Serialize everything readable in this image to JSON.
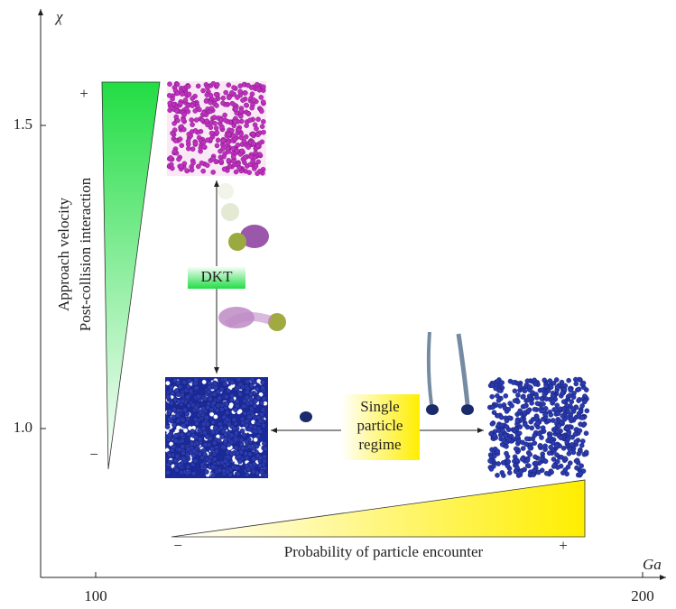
{
  "axes": {
    "x_label": "Ga",
    "y_label": "χ",
    "x_ticks": [
      "100",
      "200"
    ],
    "y_ticks": [
      "1.5",
      "1.0"
    ]
  },
  "velocity_scale": {
    "labels": [
      "Approach velocity",
      "Post-collision interaction"
    ],
    "high": "+",
    "low": "−"
  },
  "dkt": {
    "label": "DKT"
  },
  "single_particle": {
    "lines": [
      "Single",
      "particle",
      "regime"
    ]
  },
  "encounter_scale": {
    "label": "Probability of particle encounter",
    "low": "−",
    "high": "+"
  }
}
